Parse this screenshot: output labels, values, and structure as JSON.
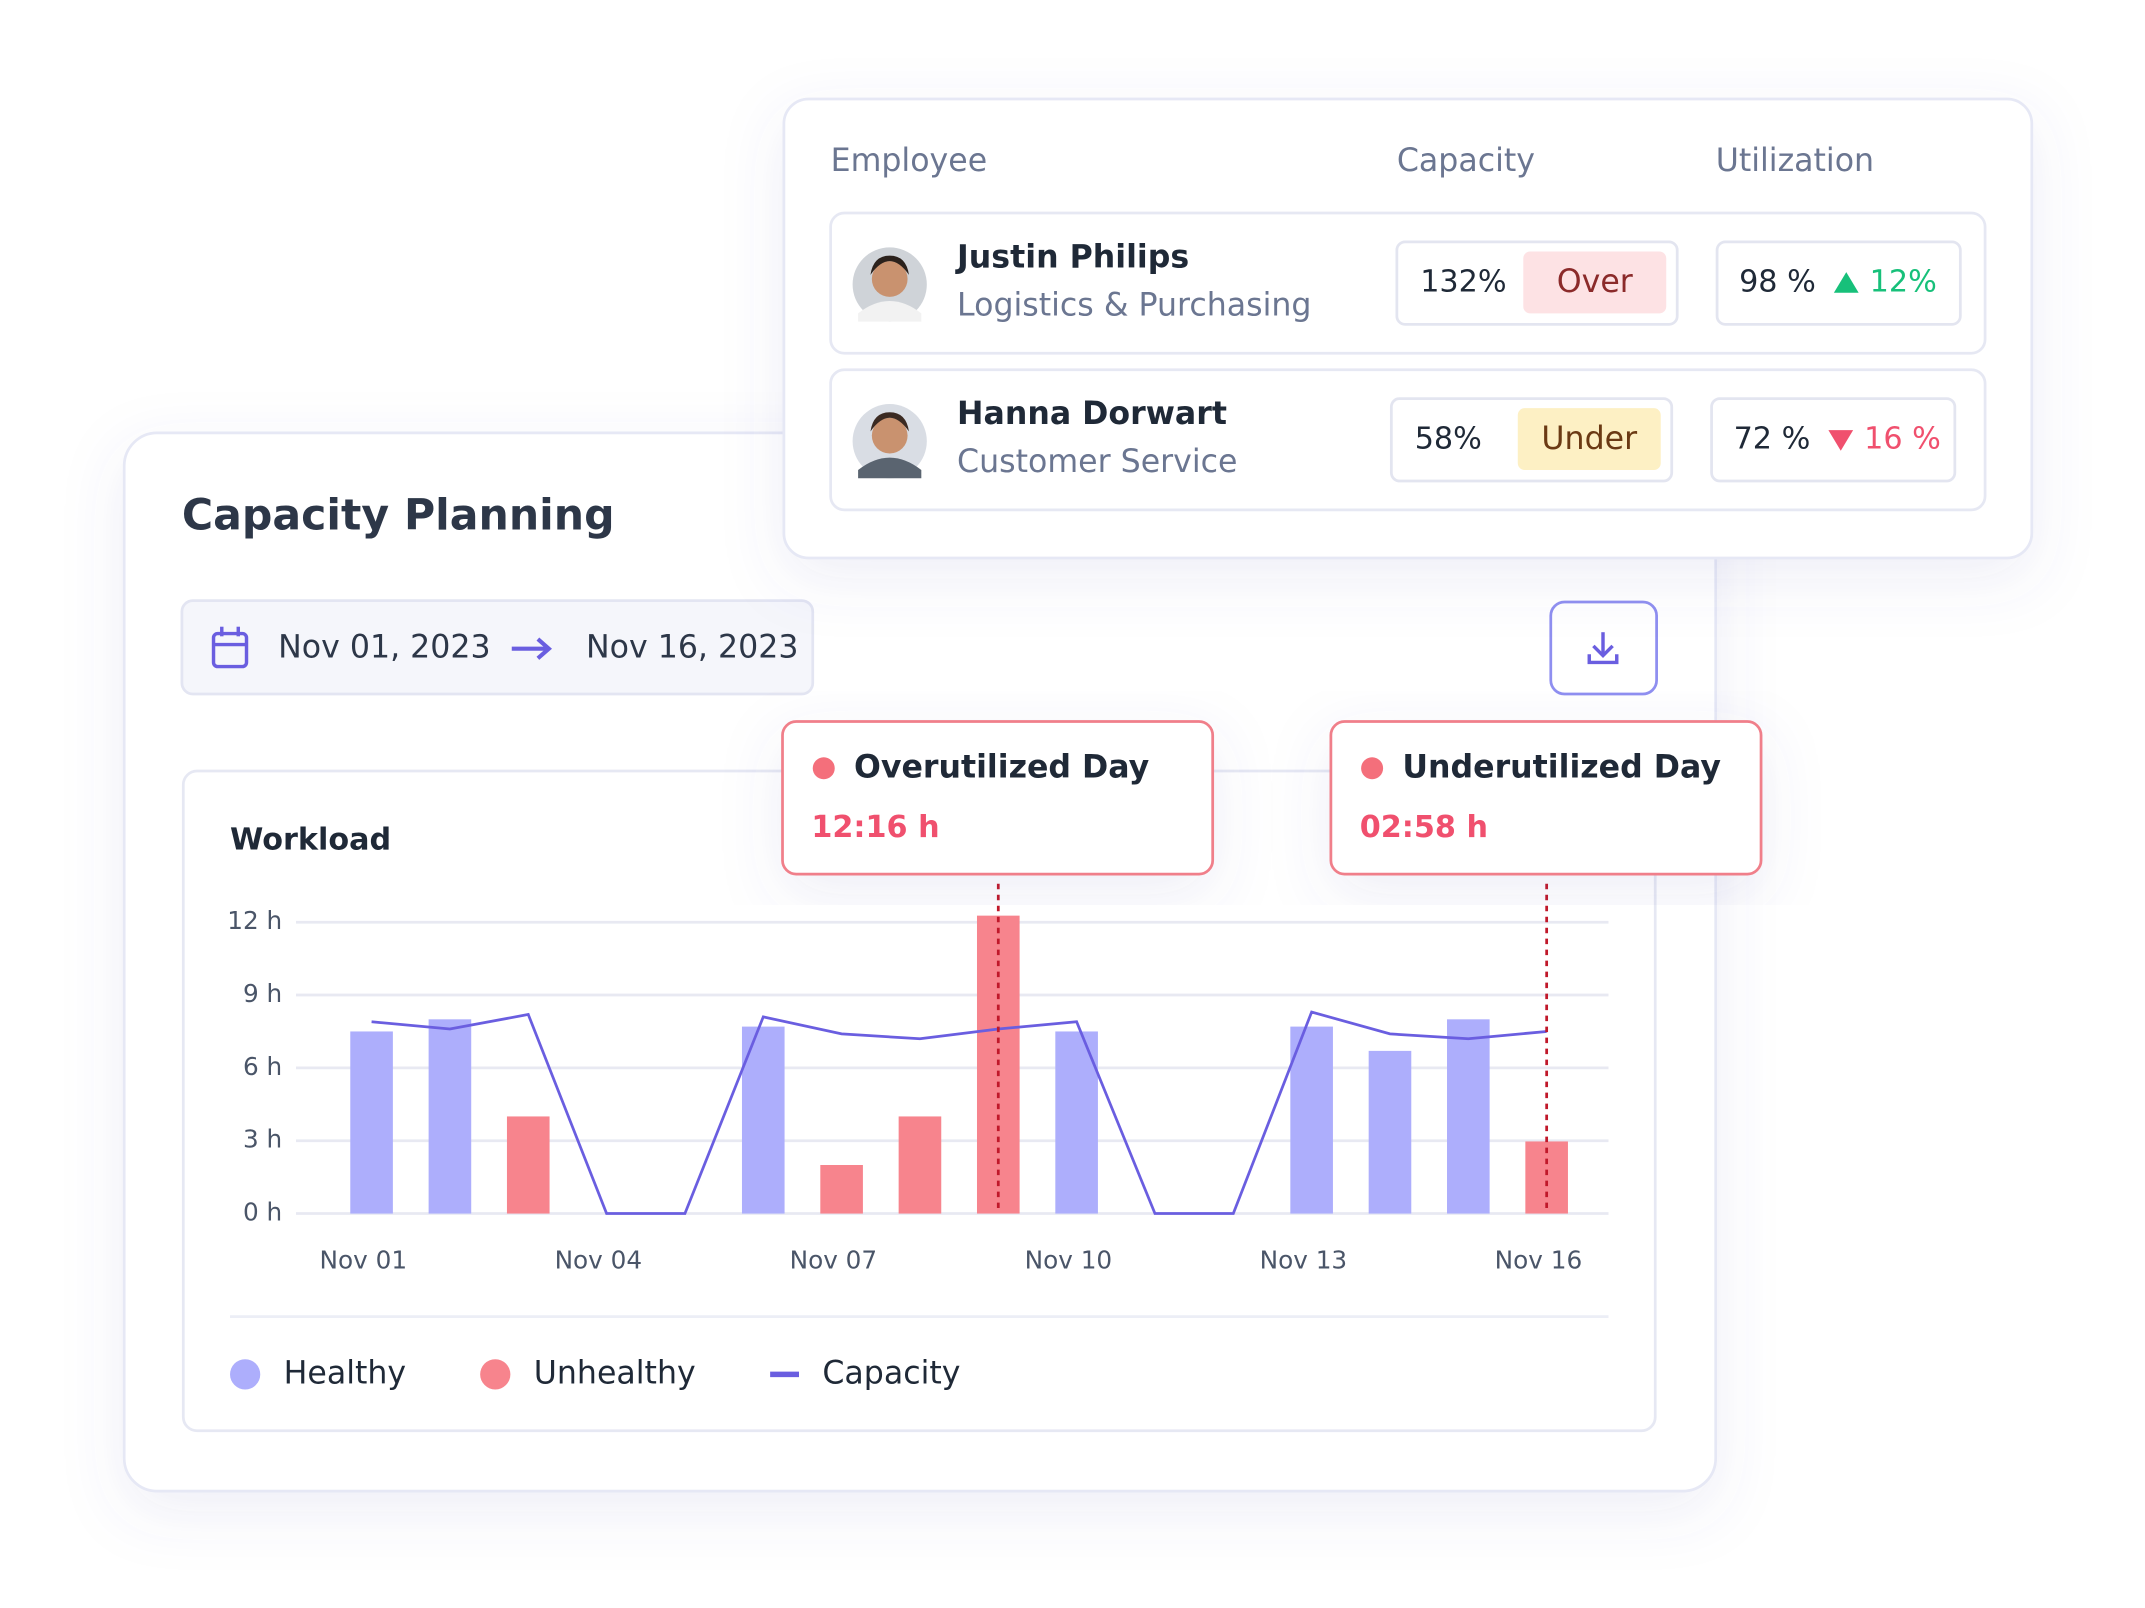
{
  "header": {
    "title": "Capacity Planning",
    "date_from": "Nov 01, 2023",
    "date_to": "Nov 16, 2023"
  },
  "table": {
    "columns": [
      "Employee",
      "Capacity",
      "Utilization"
    ],
    "rows": [
      {
        "name": "Justin Philips",
        "department": "Logistics & Purchasing",
        "capacity": "132%",
        "status": "Over",
        "utilization": "98 %",
        "change": "12%",
        "trend": "up"
      },
      {
        "name": "Hanna Dorwart",
        "department": "Customer Service",
        "capacity": "58%",
        "status": "Under",
        "utilization": "72 %",
        "change": "16 %",
        "trend": "down"
      }
    ]
  },
  "chart_data": {
    "type": "bar",
    "title": "Workload",
    "categories": [
      "Nov 01",
      null,
      null,
      "Nov 04",
      null,
      null,
      "Nov 07",
      null,
      null,
      "Nov 10",
      null,
      null,
      "Nov 13",
      null,
      null,
      "Nov 16"
    ],
    "series": [
      {
        "name": "Healthy",
        "color": "#adaefc",
        "values": [
          7.5,
          8,
          null,
          null,
          null,
          7.7,
          null,
          null,
          null,
          7.5,
          null,
          null,
          7.7,
          6.7,
          8,
          null
        ]
      },
      {
        "name": "Unhealthy",
        "color": "#f7848d",
        "values": [
          null,
          null,
          4,
          null,
          null,
          null,
          2,
          4,
          12.27,
          null,
          null,
          null,
          null,
          null,
          null,
          2.97
        ]
      },
      {
        "name": "Capacity",
        "type": "line",
        "color": "#6a5ee0",
        "values": [
          7.9,
          7.6,
          8.2,
          0,
          0,
          8.1,
          7.4,
          7.2,
          7.6,
          7.9,
          0,
          0,
          8.3,
          7.4,
          7.2,
          7.5
        ]
      }
    ],
    "ylim": [
      0,
      12
    ],
    "yticks": [
      {
        "value": 0,
        "label": "0 h"
      },
      {
        "value": 3,
        "label": "3 h"
      },
      {
        "value": 6,
        "label": "6 h"
      },
      {
        "value": 9,
        "label": "9 h"
      },
      {
        "value": 12,
        "label": "12 h"
      }
    ],
    "grid": true,
    "annotations": [
      {
        "title": "Overutilized Day",
        "label": "12:16 h"
      },
      {
        "title": "Underutilized Day",
        "label": "02:58 h"
      }
    ]
  }
}
